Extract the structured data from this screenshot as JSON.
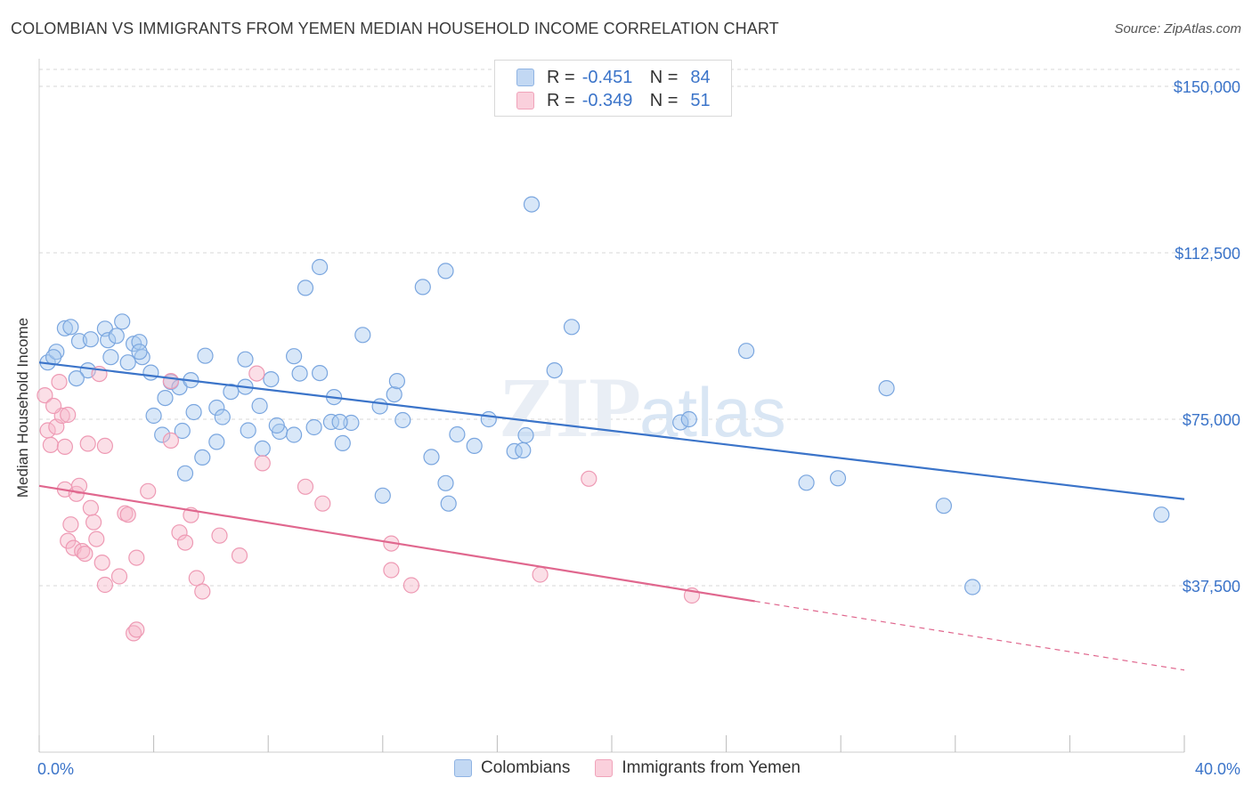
{
  "header": {
    "title": "COLOMBIAN VS IMMIGRANTS FROM YEMEN MEDIAN HOUSEHOLD INCOME CORRELATION CHART",
    "source": "Source: ZipAtlas.com"
  },
  "watermark": {
    "zip": "ZIP",
    "atlas": "atlas"
  },
  "legend": {
    "rows": [
      {
        "r_label": "R =",
        "r_value": "-0.451",
        "n_label": "N =",
        "n_value": "84",
        "color": "#a9c9f0"
      },
      {
        "r_label": "R =",
        "r_value": "-0.349",
        "n_label": "N =",
        "n_value": "51",
        "color": "#f7b9ca"
      }
    ]
  },
  "bottom_legend": {
    "series1": "Colombians",
    "series2": "Immigrants from Yemen"
  },
  "chart_data": {
    "type": "scatter",
    "title": "COLOMBIAN VS IMMIGRANTS FROM YEMEN MEDIAN HOUSEHOLD INCOME CORRELATION CHART",
    "xlabel": "",
    "ylabel": "Median Household Income",
    "xlim": [
      0,
      40
    ],
    "ylim": [
      0,
      150000
    ],
    "x_tick_labels": [
      "0.0%",
      "40.0%"
    ],
    "y_ticks": [
      37500,
      75000,
      112500,
      150000
    ],
    "y_tick_labels": [
      "$37,500",
      "$75,000",
      "$112,500",
      "$150,000"
    ],
    "grid": true,
    "legend_position": "top-center",
    "series": [
      {
        "name": "Colombians",
        "color": "#3b74c9",
        "fill": "#a9c9f0",
        "trend": {
          "x": [
            0,
            40
          ],
          "y": [
            87800,
            57000
          ]
        },
        "points": [
          [
            0.3,
            87800
          ],
          [
            0.6,
            90200
          ],
          [
            0.5,
            89000
          ],
          [
            0.9,
            95500
          ],
          [
            1.1,
            95800
          ],
          [
            1.4,
            92600
          ],
          [
            1.8,
            93000
          ],
          [
            2.3,
            95400
          ],
          [
            2.4,
            92800
          ],
          [
            2.7,
            93800
          ],
          [
            2.9,
            97000
          ],
          [
            3.3,
            92000
          ],
          [
            3.5,
            92400
          ],
          [
            3.6,
            89000
          ],
          [
            1.7,
            86000
          ],
          [
            1.3,
            84200
          ],
          [
            2.5,
            89000
          ],
          [
            3.1,
            87800
          ],
          [
            3.9,
            85500
          ],
          [
            4.4,
            79800
          ],
          [
            4.6,
            83400
          ],
          [
            4.9,
            82200
          ],
          [
            5.3,
            83800
          ],
          [
            5.8,
            89300
          ],
          [
            6.2,
            77600
          ],
          [
            6.7,
            81200
          ],
          [
            7.2,
            82300
          ],
          [
            7.2,
            88500
          ],
          [
            7.7,
            78000
          ],
          [
            8.1,
            84000
          ],
          [
            8.9,
            89200
          ],
          [
            9.1,
            85300
          ],
          [
            9.8,
            85400
          ],
          [
            10.3,
            80000
          ],
          [
            10.9,
            74200
          ],
          [
            11.3,
            94000
          ],
          [
            11.9,
            77900
          ],
          [
            12.4,
            80600
          ],
          [
            12.5,
            83600
          ],
          [
            12.7,
            74800
          ],
          [
            13.4,
            104800
          ],
          [
            14.2,
            108400
          ],
          [
            13.7,
            66500
          ],
          [
            14.2,
            60600
          ],
          [
            14.3,
            56000
          ],
          [
            14.6,
            71600
          ],
          [
            15.2,
            69000
          ],
          [
            15.7,
            75000
          ],
          [
            16.6,
            67800
          ],
          [
            16.9,
            68000
          ],
          [
            17.0,
            71400
          ],
          [
            17.2,
            123400
          ],
          [
            18.0,
            86000
          ],
          [
            18.6,
            95800
          ],
          [
            5.0,
            72400
          ],
          [
            5.1,
            62800
          ],
          [
            5.4,
            76600
          ],
          [
            5.7,
            66400
          ],
          [
            6.2,
            69900
          ],
          [
            6.4,
            75500
          ],
          [
            4.0,
            75800
          ],
          [
            4.3,
            71500
          ],
          [
            7.8,
            68400
          ],
          [
            8.4,
            72200
          ],
          [
            8.3,
            73600
          ],
          [
            8.9,
            71500
          ],
          [
            9.6,
            73200
          ],
          [
            10.2,
            74400
          ],
          [
            10.5,
            74400
          ],
          [
            10.6,
            69600
          ],
          [
            12.0,
            57800
          ],
          [
            9.8,
            109300
          ],
          [
            9.3,
            104600
          ],
          [
            22.4,
            74300
          ],
          [
            22.7,
            75000
          ],
          [
            24.7,
            90400
          ],
          [
            26.8,
            60700
          ],
          [
            27.9,
            61700
          ],
          [
            29.6,
            82000
          ],
          [
            31.6,
            55500
          ],
          [
            32.6,
            37200
          ],
          [
            39.2,
            53500
          ],
          [
            7.3,
            72500
          ],
          [
            3.5,
            90200
          ]
        ]
      },
      {
        "name": "Immigrants from Yemen",
        "color": "#e0678e",
        "fill": "#f7b9ca",
        "trend": {
          "x": [
            0,
            25
          ],
          "y": [
            60000,
            34000
          ],
          "dashed_to": {
            "x": 40,
            "y": 18500
          }
        },
        "points": [
          [
            0.2,
            80400
          ],
          [
            0.3,
            72500
          ],
          [
            0.4,
            69200
          ],
          [
            0.6,
            73300
          ],
          [
            0.7,
            83400
          ],
          [
            0.8,
            75800
          ],
          [
            0.9,
            68800
          ],
          [
            0.9,
            59200
          ],
          [
            1.0,
            47600
          ],
          [
            1.1,
            51300
          ],
          [
            1.2,
            46000
          ],
          [
            1.3,
            58200
          ],
          [
            1.4,
            60000
          ],
          [
            1.5,
            45300
          ],
          [
            1.6,
            44700
          ],
          [
            1.7,
            69500
          ],
          [
            1.8,
            55000
          ],
          [
            1.9,
            51800
          ],
          [
            2.1,
            85200
          ],
          [
            2.2,
            42700
          ],
          [
            2.3,
            69000
          ],
          [
            2.3,
            37700
          ],
          [
            2.8,
            39600
          ],
          [
            3.0,
            53800
          ],
          [
            3.1,
            53500
          ],
          [
            3.3,
            26800
          ],
          [
            3.4,
            27600
          ],
          [
            3.4,
            43800
          ],
          [
            3.8,
            58800
          ],
          [
            4.6,
            70200
          ],
          [
            4.9,
            49500
          ],
          [
            5.1,
            47200
          ],
          [
            5.3,
            53400
          ],
          [
            5.5,
            39200
          ],
          [
            5.7,
            36200
          ],
          [
            6.3,
            48800
          ],
          [
            7.0,
            44300
          ],
          [
            7.6,
            85300
          ],
          [
            7.8,
            65100
          ],
          [
            9.3,
            59800
          ],
          [
            9.9,
            56000
          ],
          [
            12.3,
            47000
          ],
          [
            12.3,
            41000
          ],
          [
            13.0,
            37600
          ],
          [
            17.5,
            40000
          ],
          [
            19.2,
            61600
          ],
          [
            22.8,
            35300
          ],
          [
            0.5,
            78000
          ],
          [
            1.0,
            76000
          ],
          [
            2.0,
            48000
          ],
          [
            4.6,
            83600
          ]
        ]
      }
    ]
  }
}
